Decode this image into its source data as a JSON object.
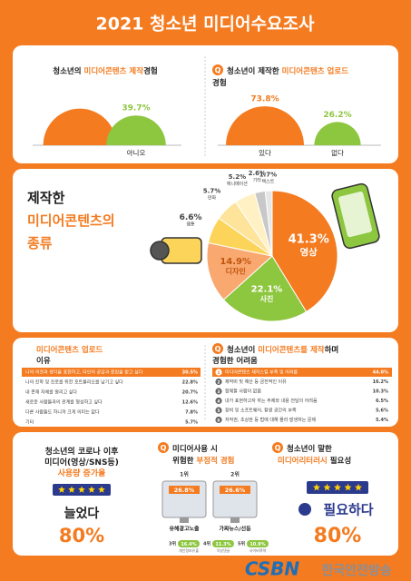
{
  "header": {
    "title": "2021 청소년 미디어수요조사"
  },
  "production": {
    "title": {
      "before": "청소년의 ",
      "highlight": "미디어콘텐츠 제작",
      "after": "경험"
    },
    "items": [
      {
        "value": 60.3,
        "color": "#f47b20"
      },
      {
        "value": 39.7,
        "label": "39.7%",
        "name": "아니오",
        "color": "#8dc63f"
      }
    ]
  },
  "upload": {
    "badge": "Q",
    "title": {
      "before": "청소년이 제작한 ",
      "highlight": "미디어콘텐츠 업로드",
      "after": "경험"
    },
    "items": [
      {
        "value": 73.8,
        "label": "73.8%",
        "name": "있다",
        "color": "#f47b20"
      },
      {
        "value": 26.2,
        "label": "26.2%",
        "name": "없다",
        "color": "#8dc63f"
      }
    ]
  },
  "types": {
    "title": {
      "line1": "제작한",
      "line2": "미디어콘텐츠의",
      "line3": "종류"
    },
    "slices": [
      {
        "name": "영상",
        "value": 41.3,
        "label": "41.3%",
        "color": "#f47b20"
      },
      {
        "name": "사진",
        "value": 22.1,
        "label": "22.1%",
        "color": "#8dc63f"
      },
      {
        "name": "디자인",
        "value": 14.9,
        "label": "14.9%",
        "color": "#f9a870"
      },
      {
        "name": "웹툰",
        "value": 6.6,
        "label": "6.6%",
        "color": "#fcd45a"
      },
      {
        "name": "만화",
        "value": 5.7,
        "label": "5.7%",
        "color": "#fde49a"
      },
      {
        "name": "애니메이션",
        "value": 5.2,
        "label": "5.2%",
        "color": "#fff1c4"
      },
      {
        "name": "기타",
        "value": 2.6,
        "label": "2.6%",
        "color": "#c8c8c8"
      },
      {
        "name": "텍스트",
        "value": 1.7,
        "label": "1.7%",
        "color": "#e6e6e6"
      }
    ]
  },
  "reasons": {
    "title": {
      "highlight": "미디어콘텐츠 업로드",
      "after": "이유"
    },
    "rows": [
      {
        "text": "나의 의견과 생각을 표현하고, 타인의 공감과 응원을 받고 싶다",
        "value": "30.5%"
      },
      {
        "text": "나의 진학 및 진로를 위한 포트폴리오를 남기고 싶다",
        "value": "22.8%"
      },
      {
        "text": "내 존재 자체를 알리고 싶다",
        "value": "20.7%"
      },
      {
        "text": "새로운 사람들과의 관계를 형성하고 싶다",
        "value": "12.6%"
      },
      {
        "text": "다른 사람들도 하니까 크게 의미는 없다",
        "value": "7.8%"
      },
      {
        "text": "기타",
        "value": "5.7%"
      }
    ]
  },
  "difficulties": {
    "badge": "Q",
    "title": {
      "before": "청소년이 ",
      "highlight": "미디어콘텐츠를 제작",
      "after": "하며",
      "line2": "경험한 어려움"
    },
    "rows": [
      {
        "rank": "1",
        "text": "미디어콘텐츠 제작스킬 부족 및 어려움",
        "value": "44.0%"
      },
      {
        "rank": "2",
        "text": "제작비 및 예산 등 금전적인 이유",
        "value": "16.2%"
      },
      {
        "rank": "3",
        "text": "함께할 사람이 없음",
        "value": "10.3%"
      },
      {
        "rank": "4",
        "text": "내가 표현하고자 하는 주제와 내용 전달의 어려움",
        "value": "6.5%"
      },
      {
        "rank": "5",
        "text": "장비 및 소프트웨어, 촬영 공간의 부족",
        "value": "5.6%"
      },
      {
        "rank": "6",
        "text": "저작권, 초상권 등 법에 대해 몰라 발생하는 문제",
        "value": "5.4%"
      }
    ]
  },
  "covid": {
    "title": {
      "line1": "청소년의 코로나 이후",
      "line2": "미디어(영상/SNS등)",
      "line3": "사용량 증가율"
    },
    "answer": "늘었다",
    "value": "80%"
  },
  "risk": {
    "badge": "Q",
    "title": {
      "line1": "미디어사용 시",
      "line2_before": "위험한 ",
      "line2_highlight": "부정적 경험"
    },
    "top": [
      {
        "rank": "1위",
        "value": "26.8%",
        "name": "유해광고노출"
      },
      {
        "rank": "2위",
        "value": "26.6%",
        "name": "가짜뉴스/선동"
      }
    ],
    "others": [
      {
        "rank": "3위",
        "value": "16.4%",
        "name": "개인정보유출"
      },
      {
        "rank": "4위",
        "value": "11.3%",
        "name": "악성댓글"
      },
      {
        "rank": "5위",
        "value": "10.9%",
        "name": "사이버폭력"
      }
    ]
  },
  "literacy": {
    "badge": "Q",
    "title": {
      "line1": "청소년이 말한",
      "line2_highlight": "미디어리터러시",
      "line2_after": " 필요성"
    },
    "answer": "필요하다",
    "value": "80%"
  },
  "footer": {
    "brand": "CSBN",
    "name": "한국안전방송"
  }
}
